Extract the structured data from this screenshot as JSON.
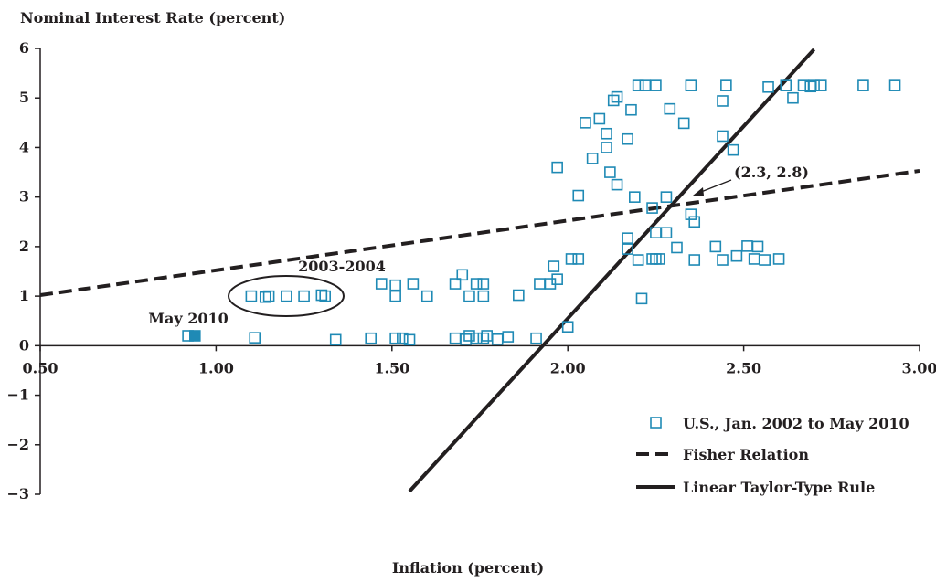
{
  "chart_data": {
    "type": "scatter",
    "title": "",
    "ylabel": "Nominal Interest Rate (percent)",
    "xlabel": "Inflation (percent)",
    "xlim": [
      0.5,
      3.0
    ],
    "ylim": [
      -3,
      6
    ],
    "x_ticks": [
      "0.50",
      "1.00",
      "1.50",
      "2.00",
      "2.50",
      "3.00"
    ],
    "y_ticks": [
      "6",
      "5",
      "4",
      "3",
      "2",
      "1",
      "0",
      "−1",
      "−2",
      "−3"
    ],
    "grid": false,
    "legend_position": "bottom-right",
    "series": [
      {
        "name": "U.S., Jan. 2002 to May 2010",
        "kind": "scatter",
        "marker": "open-square",
        "color": "#1f8ab5",
        "points": [
          [
            1.1,
            1.0
          ],
          [
            1.14,
            0.98
          ],
          [
            1.15,
            1.0
          ],
          [
            1.2,
            1.0
          ],
          [
            1.25,
            1.0
          ],
          [
            1.3,
            1.02
          ],
          [
            1.31,
            1.0
          ],
          [
            1.47,
            1.25
          ],
          [
            1.51,
            1.0
          ],
          [
            1.51,
            1.22
          ],
          [
            1.56,
            1.25
          ],
          [
            1.6,
            1.0
          ],
          [
            1.68,
            1.25
          ],
          [
            1.7,
            1.43
          ],
          [
            1.72,
            1.0
          ],
          [
            1.74,
            1.25
          ],
          [
            1.76,
            1.0
          ],
          [
            1.76,
            1.25
          ],
          [
            1.86,
            1.02
          ],
          [
            1.92,
            1.25
          ],
          [
            1.95,
            1.25
          ],
          [
            1.96,
            1.6
          ],
          [
            1.97,
            1.34
          ],
          [
            2.01,
            1.75
          ],
          [
            2.03,
            1.75
          ],
          [
            1.11,
            0.16
          ],
          [
            1.34,
            0.12
          ],
          [
            1.44,
            0.15
          ],
          [
            1.51,
            0.15
          ],
          [
            1.53,
            0.15
          ],
          [
            1.55,
            0.12
          ],
          [
            1.68,
            0.15
          ],
          [
            1.71,
            0.13
          ],
          [
            1.72,
            0.2
          ],
          [
            1.74,
            0.15
          ],
          [
            1.76,
            0.15
          ],
          [
            1.77,
            0.2
          ],
          [
            1.8,
            0.13
          ],
          [
            1.83,
            0.18
          ],
          [
            1.91,
            0.15
          ],
          [
            2.0,
            0.38
          ],
          [
            1.97,
            3.6
          ],
          [
            2.03,
            3.03
          ],
          [
            2.05,
            4.5
          ],
          [
            2.07,
            3.78
          ],
          [
            2.09,
            4.58
          ],
          [
            2.11,
            4.0
          ],
          [
            2.11,
            4.28
          ],
          [
            2.12,
            3.5
          ],
          [
            2.13,
            4.95
          ],
          [
            2.14,
            5.02
          ],
          [
            2.14,
            3.25
          ],
          [
            2.17,
            4.17
          ],
          [
            2.18,
            4.76
          ],
          [
            2.19,
            3.0
          ],
          [
            2.2,
            5.25
          ],
          [
            2.22,
            5.25
          ],
          [
            2.25,
            5.25
          ],
          [
            2.17,
            2.17
          ],
          [
            2.17,
            1.95
          ],
          [
            2.2,
            1.73
          ],
          [
            2.21,
            0.95
          ],
          [
            2.24,
            1.75
          ],
          [
            2.24,
            2.78
          ],
          [
            2.25,
            1.75
          ],
          [
            2.25,
            2.28
          ],
          [
            2.26,
            1.75
          ],
          [
            2.28,
            2.28
          ],
          [
            2.28,
            3.0
          ],
          [
            2.29,
            4.78
          ],
          [
            2.31,
            1.98
          ],
          [
            2.33,
            4.49
          ],
          [
            2.35,
            2.65
          ],
          [
            2.35,
            5.25
          ],
          [
            2.36,
            2.5
          ],
          [
            2.36,
            1.73
          ],
          [
            2.42,
            2.0
          ],
          [
            2.44,
            1.73
          ],
          [
            2.44,
            4.94
          ],
          [
            2.44,
            4.23
          ],
          [
            2.45,
            5.25
          ],
          [
            2.47,
            3.95
          ],
          [
            2.48,
            1.81
          ],
          [
            2.51,
            2.01
          ],
          [
            2.53,
            1.75
          ],
          [
            2.54,
            2.0
          ],
          [
            2.56,
            1.73
          ],
          [
            2.57,
            5.22
          ],
          [
            2.6,
            1.75
          ],
          [
            2.62,
            5.25
          ],
          [
            2.64,
            5.0
          ],
          [
            2.67,
            5.25
          ],
          [
            2.69,
            5.23
          ],
          [
            2.7,
            5.25
          ],
          [
            2.72,
            5.25
          ],
          [
            2.84,
            5.25
          ],
          [
            2.93,
            5.25
          ],
          [
            0.92,
            0.2
          ]
        ]
      },
      {
        "name": "Fisher Relation",
        "kind": "line",
        "style": "dashed",
        "points": [
          [
            0.5,
            1.02
          ],
          [
            3.0,
            3.53
          ]
        ]
      },
      {
        "name": "Linear Taylor-Type Rule",
        "kind": "line",
        "style": "solid",
        "points": [
          [
            1.55,
            -2.94
          ],
          [
            2.7,
            5.98
          ]
        ]
      }
    ],
    "highlight_point": {
      "label": "May 2010",
      "x": 0.94,
      "y": 0.2
    },
    "annotations": {
      "intersection": "(2.3, 2.8)",
      "period_label": "2003-2004",
      "may_label": "May 2010"
    }
  }
}
